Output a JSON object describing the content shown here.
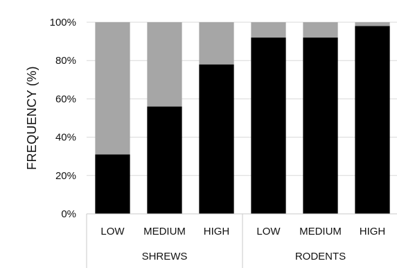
{
  "chart_data": {
    "type": "bar",
    "stacked": true,
    "normalized": true,
    "groups": [
      {
        "label": "SHREWS",
        "categories": [
          "LOW",
          "MEDIUM",
          "HIGH"
        ]
      },
      {
        "label": "RODENTS",
        "categories": [
          "LOW",
          "MEDIUM",
          "HIGH"
        ]
      }
    ],
    "series": [
      {
        "color": "#000000",
        "values": [
          31,
          56,
          78,
          92,
          92,
          98
        ]
      },
      {
        "color": "#a6a6a6",
        "values": [
          69,
          44,
          22,
          8,
          8,
          2
        ]
      }
    ],
    "ylabel": "FREQUENCY (%)",
    "ylim": [
      0,
      100
    ],
    "yticks": [
      {
        "value": 0,
        "label": "0%"
      },
      {
        "value": 20,
        "label": "20%"
      },
      {
        "value": 40,
        "label": "40%"
      },
      {
        "value": 60,
        "label": "60%"
      },
      {
        "value": 80,
        "label": "80%"
      },
      {
        "value": 100,
        "label": "100%"
      }
    ],
    "grid": true,
    "legend": "none"
  }
}
